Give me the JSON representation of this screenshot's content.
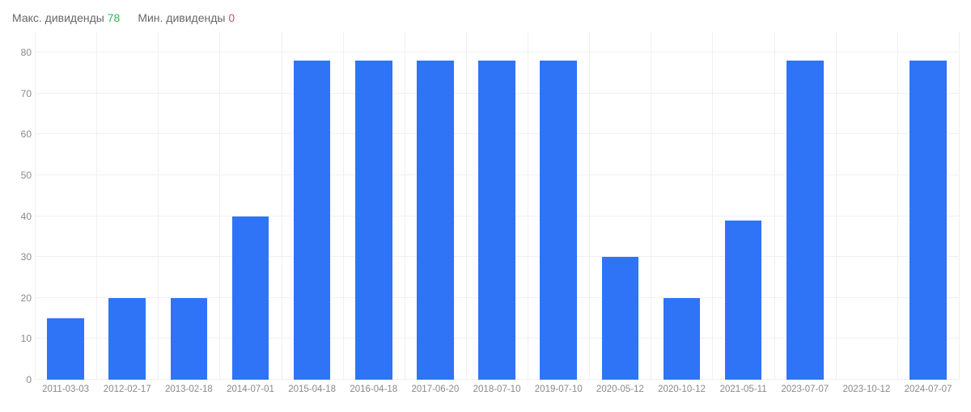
{
  "legend": {
    "max_label": "Макс. дивиденды",
    "max_value": "78",
    "min_label": "Мин. дивиденды",
    "min_value": "0",
    "max_color": "#2db54a",
    "min_color": "#e34b6b",
    "text_color": "#666666",
    "fontsize": 14
  },
  "chart": {
    "type": "bar",
    "bar_color": "#2f73f7",
    "background_color": "#ffffff",
    "grid_color": "#f0f0f2",
    "axis_text_color": "#888888",
    "axis_fontsize": 12,
    "ylim": [
      0,
      85
    ],
    "yticks": [
      0,
      10,
      20,
      30,
      40,
      50,
      60,
      70,
      80
    ],
    "bar_width_ratio": 0.6,
    "categories": [
      "2011-03-03",
      "2012-02-17",
      "2013-02-18",
      "2014-07-01",
      "2015-04-18",
      "2016-04-18",
      "2017-06-20",
      "2018-07-10",
      "2019-07-10",
      "2020-05-12",
      "2020-10-12",
      "2021-05-11",
      "2023-07-07",
      "2023-10-12",
      "2024-07-07"
    ],
    "values": [
      15,
      20,
      20,
      40,
      78,
      78,
      78,
      78,
      78,
      30,
      20,
      39,
      78,
      0,
      78
    ]
  }
}
